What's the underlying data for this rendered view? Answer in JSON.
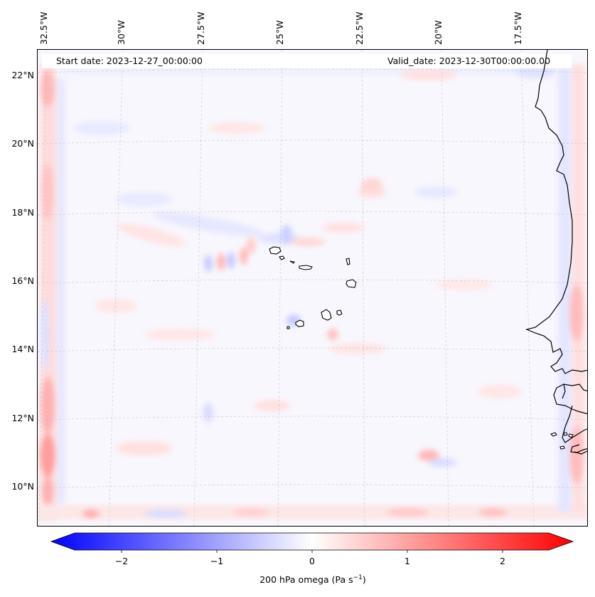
{
  "map": {
    "start_date_text": "Start date: 2023-12-27_00:00:00",
    "valid_date_text": "Valid_date: 2023-12-30T00:00:00.00",
    "lon_labels": [
      "32.5°W",
      "30°W",
      "27.5°W",
      "25°W",
      "22.5°W",
      "20°W",
      "17.5°W"
    ],
    "lat_labels": [
      "22°N",
      "20°N",
      "18°N",
      "16°N",
      "14°N",
      "12°N",
      "10°N"
    ],
    "field": "200 hPa omega",
    "region": "Cape Verde / West Africa coast"
  },
  "colorbar": {
    "label_main": "200 hPa omega (Pa s",
    "label_exp": "−1",
    "label_close": ")",
    "ticks": [
      "−2",
      "−1",
      "0",
      "1",
      "2"
    ],
    "min": -2.7,
    "max": 2.7,
    "cmap": "bwr",
    "extend": "both"
  },
  "colors": {
    "negative": "#0000ff",
    "zero": "#ffffff",
    "positive": "#ff0000",
    "coastline": "#000000",
    "gridline": "#b0b0b0"
  }
}
